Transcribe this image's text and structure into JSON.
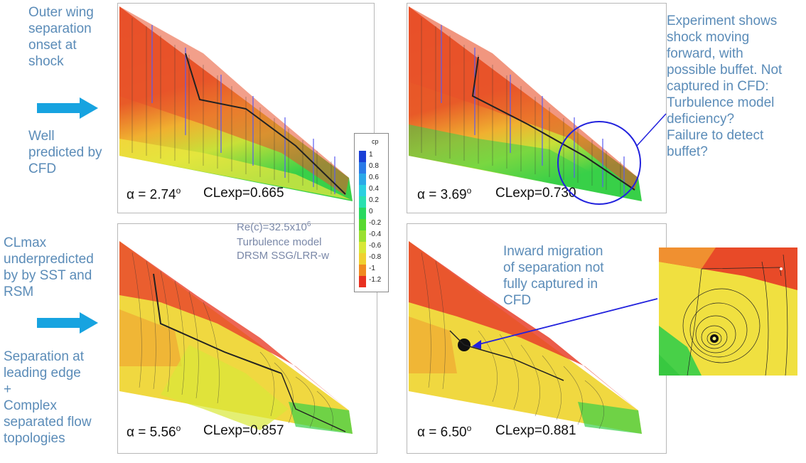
{
  "left_notes": {
    "top": "Outer wing\nseparation\nonset at\nshock",
    "well": "Well\npredicted by\nCFD",
    "clmax": "CLmax\nunderpredicted\nby by SST and\nRSM",
    "separation": "Separation at\nleading edge\n      +\nComplex\nseparated flow\ntopologies"
  },
  "right_note": "Experiment shows\nshock moving\nforward,  with\npossible buffet. Not\ncaptured in CFD:\nTurbulence model\ndeficiency?\nFailure to detect\nbuffet?",
  "inward_note": "Inward migration\nof separation not\nfully captured in\nCFD",
  "reynolds": "Re(c)=32.5x10",
  "reynolds_exp": "6",
  "turbulence_text": "Turbulence model\nDRSM SSG/LRR-w",
  "colorbar": {
    "title": "cp",
    "ticks": [
      "1",
      "0.8",
      "0.6",
      "0.4",
      "0.2",
      "0",
      "-0.2",
      "-0.4",
      "-0.6",
      "-0.8",
      "-1",
      "-1.2"
    ],
    "colors": [
      "#1a3fd6",
      "#2a7be8",
      "#2aa8e8",
      "#2ad0e0",
      "#2ae0b0",
      "#2ad860",
      "#58d830",
      "#9ae030",
      "#d8e838",
      "#f0d030",
      "#f08a20",
      "#e83020"
    ]
  },
  "panels": [
    {
      "alpha": "α = 2.74",
      "deg": "o",
      "cl": "CLexp=0.665"
    },
    {
      "alpha": "α = 3.69",
      "deg": "o",
      "cl": "CLexp=0.730"
    },
    {
      "alpha": "α = 5.56",
      "deg": "o",
      "cl": "CLexp=0.857"
    },
    {
      "alpha": "α = 6.50",
      "deg": "o",
      "cl": "CLexp=0.881"
    }
  ]
}
